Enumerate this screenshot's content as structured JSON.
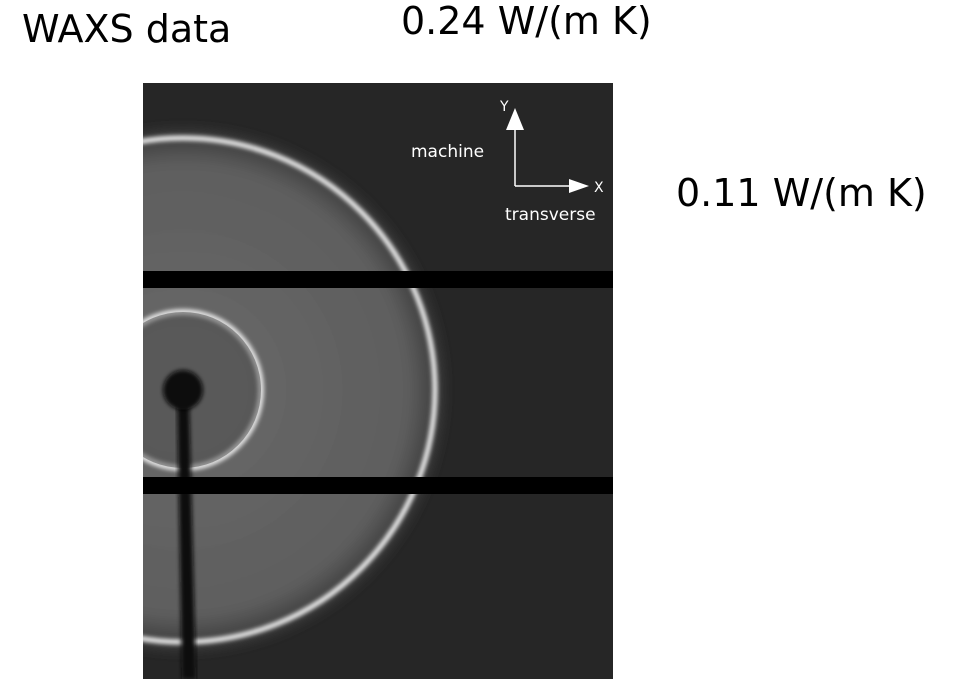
{
  "title": "WAXS data",
  "labels": {
    "top_value": "0.24 W/(m K)",
    "side_value": "0.11 W/(m K)"
  },
  "axes": {
    "y_letter": "Y",
    "y_name": "machine",
    "x_letter": "X",
    "x_name": "transverse"
  }
}
